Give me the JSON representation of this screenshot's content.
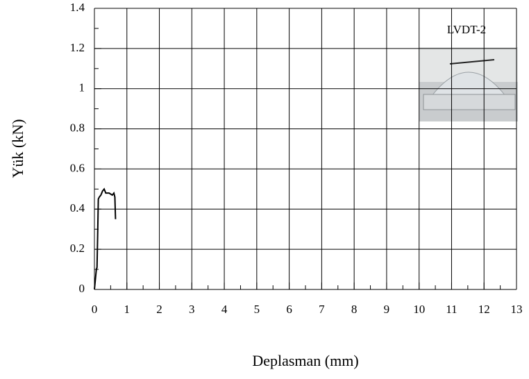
{
  "chart_data": {
    "type": "line",
    "y_label": "Yük (kN)",
    "x_label": "Deplasman (mm)",
    "annotation": "LVDT-2",
    "xlim": [
      0,
      13
    ],
    "xticks": [
      0,
      1,
      2,
      3,
      4,
      5,
      6,
      7,
      8,
      9,
      10,
      11,
      12,
      13
    ],
    "ylim": [
      0,
      1.4
    ],
    "yticks": [
      0,
      0.2,
      0.4,
      0.6,
      0.8,
      1,
      1.2,
      1.4
    ],
    "grid": true,
    "series": [
      {
        "color": "#000000",
        "x": [
          0,
          0.06,
          0.08,
          0.1,
          0.12,
          0.15,
          0.2,
          0.25,
          0.3,
          0.35,
          0.45,
          0.55,
          0.6,
          0.63,
          0.65
        ],
        "values": [
          0,
          0.1,
          0.11,
          0.27,
          0.45,
          0.46,
          0.47,
          0.49,
          0.5,
          0.48,
          0.48,
          0.47,
          0.48,
          0.46,
          0.35
        ]
      }
    ]
  }
}
